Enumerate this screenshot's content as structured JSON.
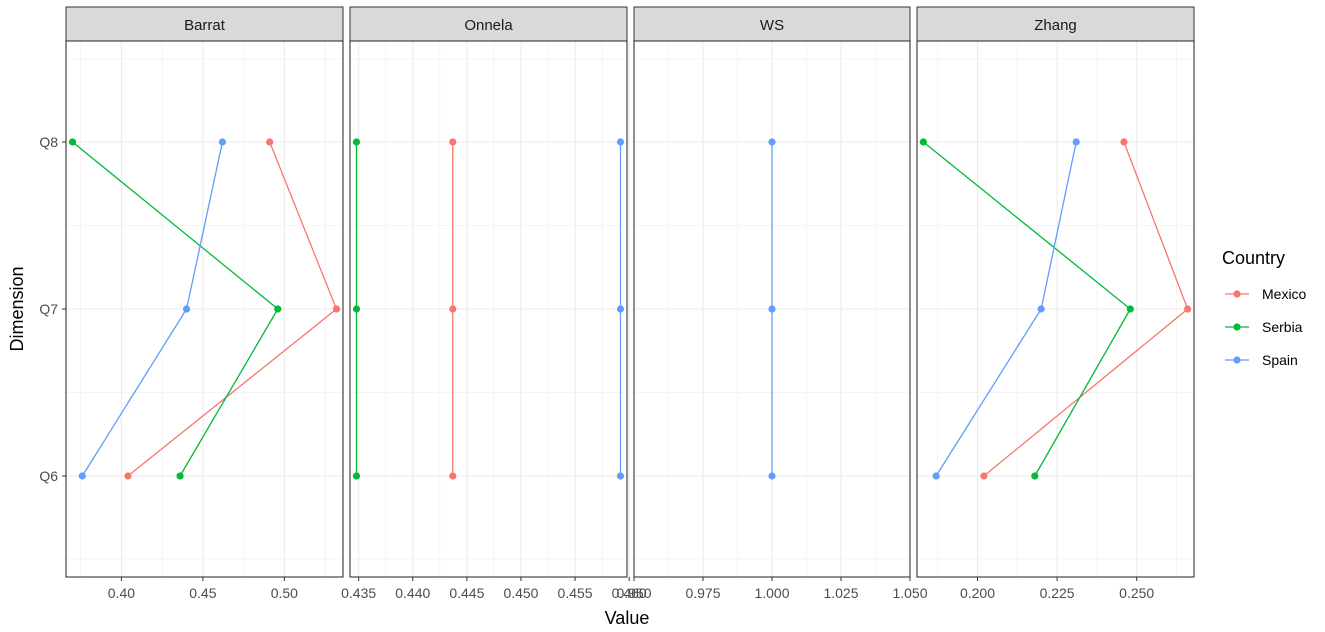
{
  "chart_data": {
    "type": "line",
    "xlabel": "Value",
    "ylabel": "Dimension",
    "categories": [
      "Q6",
      "Q7",
      "Q8"
    ],
    "grid": true,
    "legend": {
      "title": "Country",
      "placement": "right",
      "entries": [
        {
          "name": "Mexico",
          "color": "#F8766D"
        },
        {
          "name": "Serbia",
          "color": "#00BA38"
        },
        {
          "name": "Spain",
          "color": "#619CFF"
        }
      ]
    },
    "panels": [
      {
        "title": "Barrat",
        "xlim": [
          0.366,
          0.536
        ],
        "ticks": [
          0.4,
          0.45,
          0.5
        ],
        "tick_labels": [
          "0.40",
          "0.45",
          "0.50"
        ],
        "series": [
          {
            "name": "Mexico",
            "values": {
              "Q6": 0.404,
              "Q7": 0.532,
              "Q8": 0.491
            }
          },
          {
            "name": "Serbia",
            "values": {
              "Q6": 0.436,
              "Q7": 0.496,
              "Q8": 0.37
            }
          },
          {
            "name": "Spain",
            "values": {
              "Q6": 0.376,
              "Q7": 0.44,
              "Q8": 0.462
            }
          }
        ]
      },
      {
        "title": "Onnela",
        "xlim": [
          0.4342,
          0.4598
        ],
        "ticks": [
          0.435,
          0.44,
          0.445,
          0.45,
          0.455,
          0.46
        ],
        "tick_labels": [
          "0.435",
          "0.440",
          "0.445",
          "0.450",
          "0.455",
          "0.460"
        ],
        "series": [
          {
            "name": "Mexico",
            "values": {
              "Q6": 0.4437,
              "Q7": 0.4437,
              "Q8": 0.4437
            }
          },
          {
            "name": "Serbia",
            "values": {
              "Q6": 0.4348,
              "Q7": 0.4348,
              "Q8": 0.4348
            }
          },
          {
            "name": "Spain",
            "values": {
              "Q6": 0.4592,
              "Q7": 0.4592,
              "Q8": 0.4592
            }
          }
        ]
      },
      {
        "title": "WS",
        "xlim": [
          0.95,
          1.05
        ],
        "ticks": [
          0.95,
          0.975,
          1.0,
          1.025,
          1.05
        ],
        "tick_labels": [
          "0.950",
          "0.975",
          "1.000",
          "1.025",
          "1.050"
        ],
        "series": [
          {
            "name": "Spain",
            "values": {
              "Q6": 1.0,
              "Q7": 1.0,
              "Q8": 1.0
            }
          }
        ]
      },
      {
        "title": "Zhang",
        "xlim": [
          0.181,
          0.268
        ],
        "ticks": [
          0.2,
          0.225,
          0.25
        ],
        "tick_labels": [
          "0.200",
          "0.225",
          "0.250"
        ],
        "series": [
          {
            "name": "Mexico",
            "values": {
              "Q6": 0.202,
              "Q7": 0.266,
              "Q8": 0.246
            }
          },
          {
            "name": "Serbia",
            "values": {
              "Q6": 0.218,
              "Q7": 0.248,
              "Q8": 0.183
            }
          },
          {
            "name": "Spain",
            "values": {
              "Q6": 0.187,
              "Q7": 0.22,
              "Q8": 0.231
            }
          }
        ]
      }
    ]
  }
}
